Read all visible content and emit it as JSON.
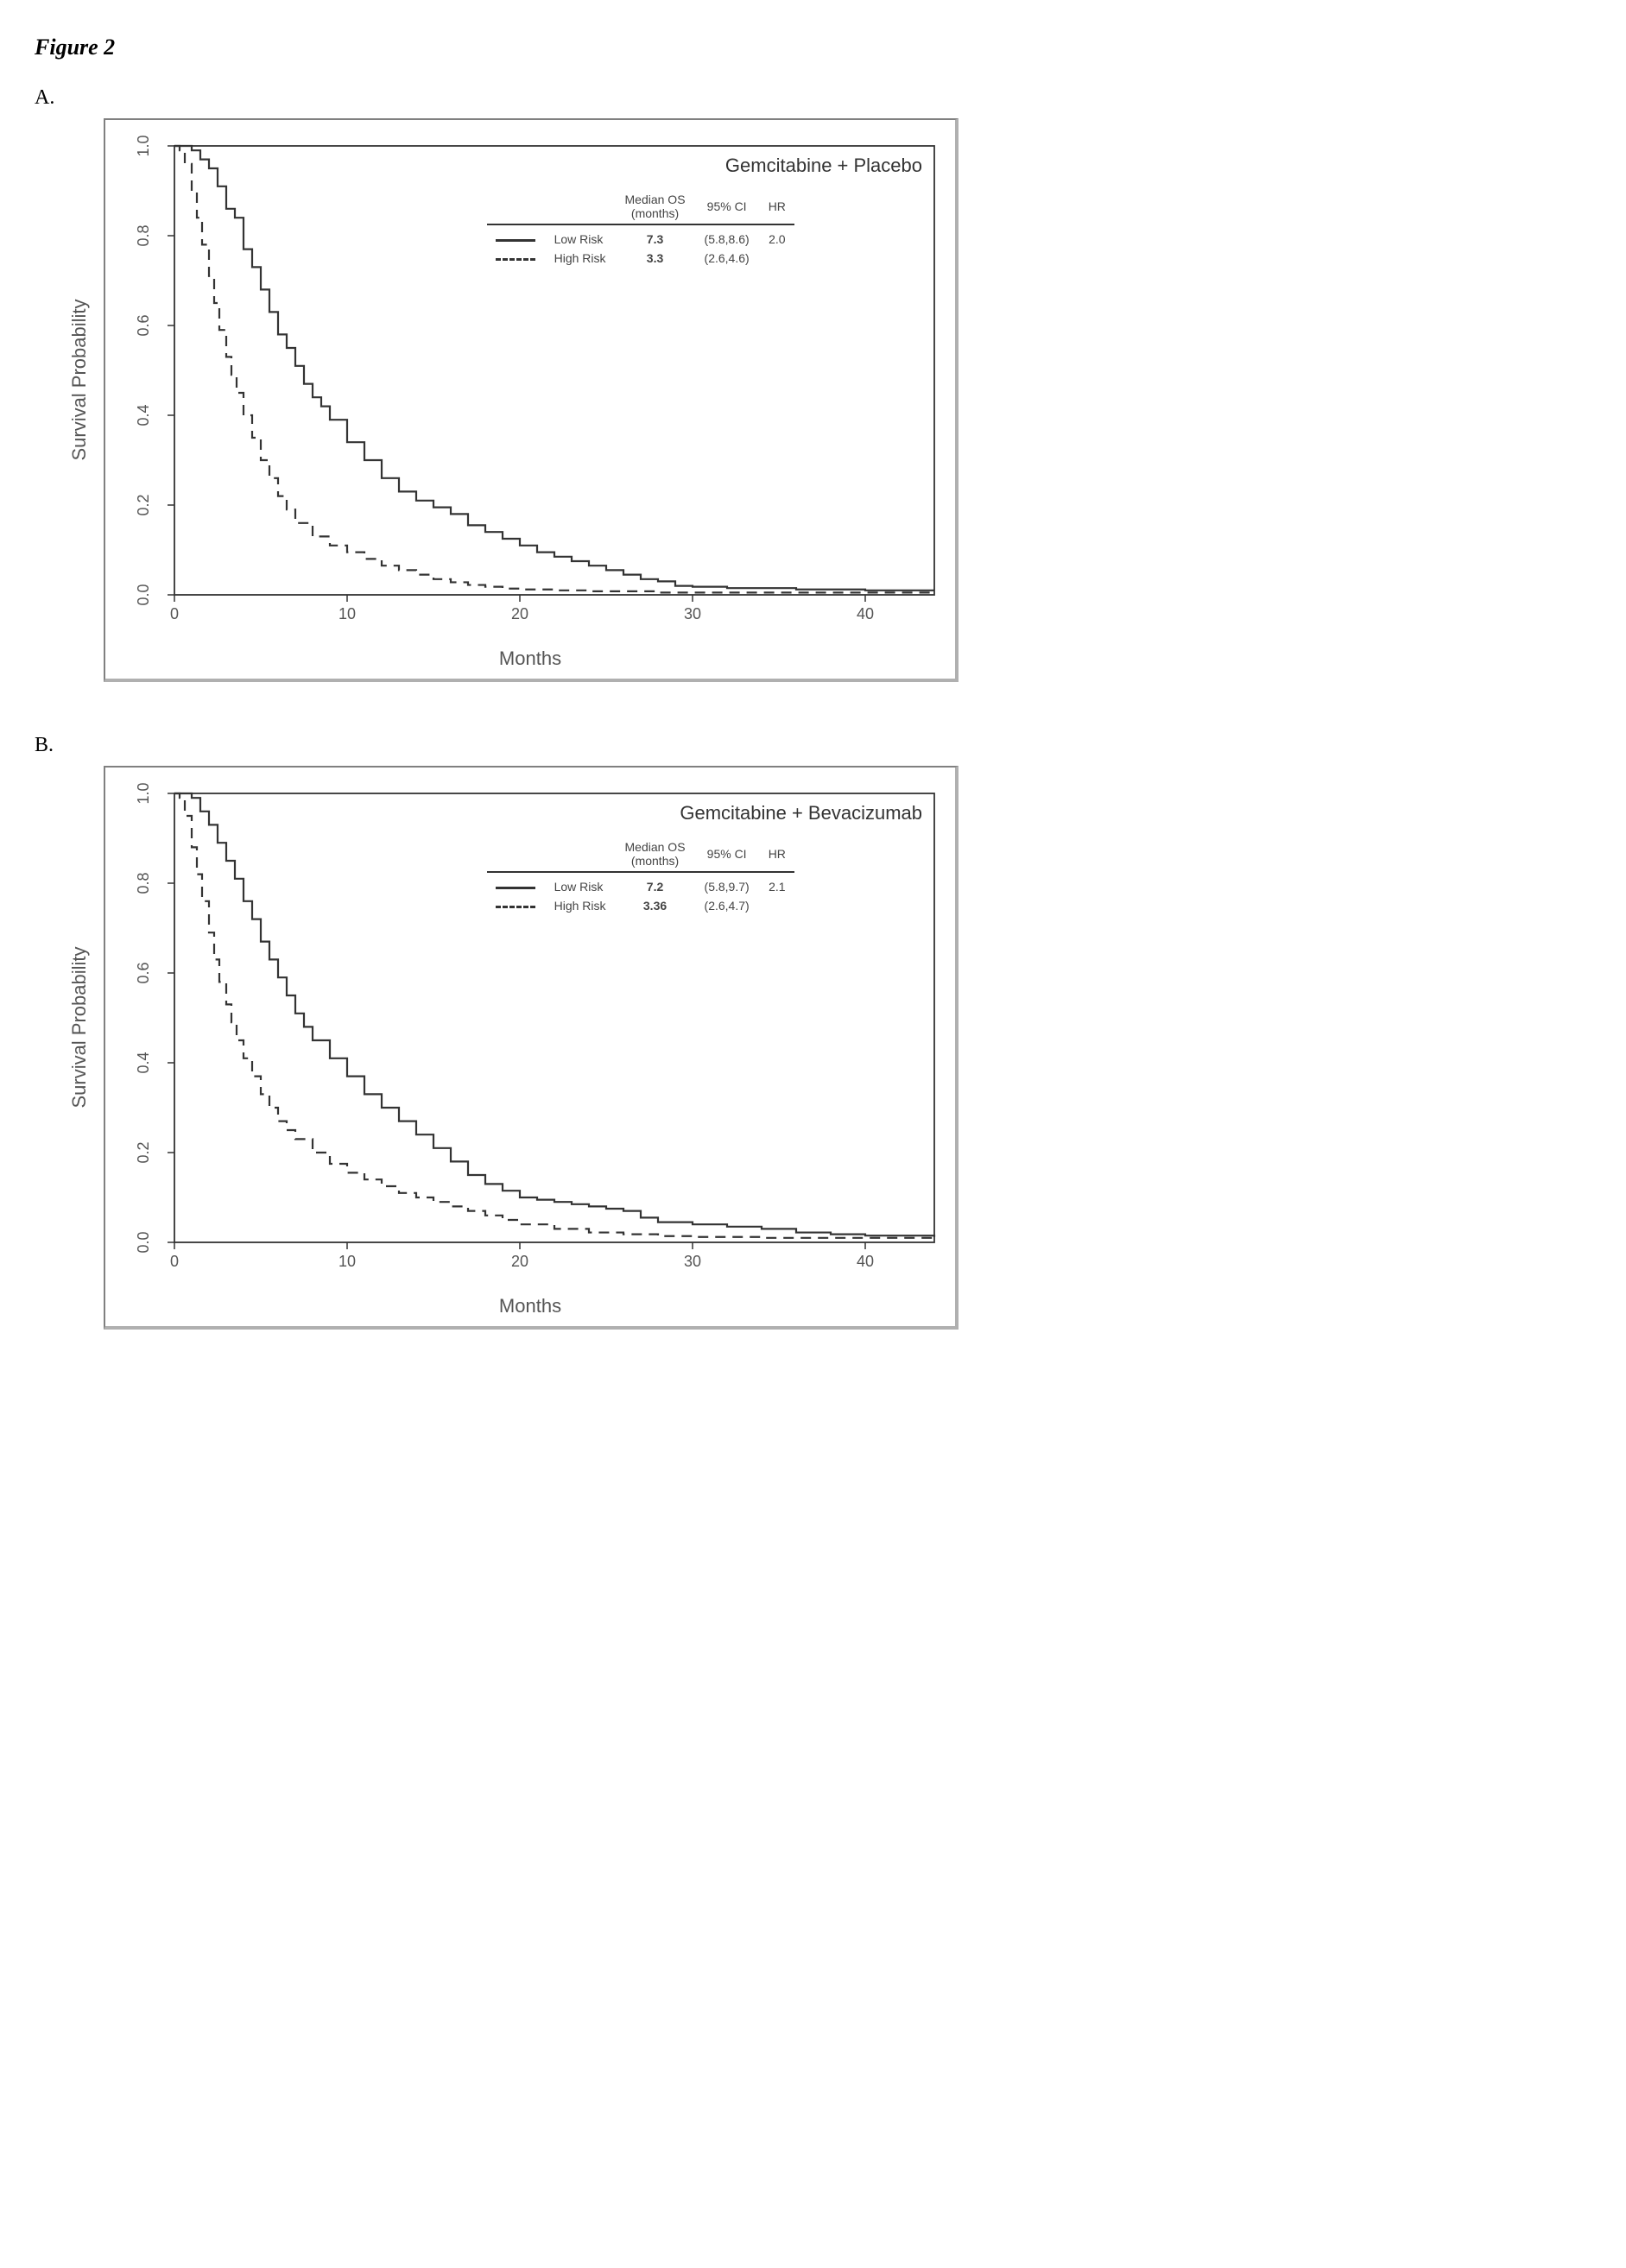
{
  "figure_label": "Figure 2",
  "panels": {
    "A": {
      "panel_label": "A.",
      "title": "Gemcitabine + Placebo",
      "xlabel": "Months",
      "ylabel": "Survival Probability",
      "xlim": [
        0,
        44
      ],
      "ylim": [
        0,
        1.0
      ],
      "xticks": [
        0,
        10,
        20,
        30,
        40
      ],
      "yticks": [
        0.0,
        0.2,
        0.4,
        0.6,
        0.8,
        1.0
      ],
      "ytick_labels": [
        "0.0",
        "0.2",
        "0.4",
        "0.6",
        "0.8",
        "1.0"
      ],
      "legend_headers": [
        "",
        "Median OS (months)",
        "95% CI",
        "HR"
      ],
      "series": [
        {
          "name": "Low Risk",
          "dash": "solid",
          "color": "#333333",
          "median_os": "7.3",
          "ci": "(5.8,8.6)",
          "hr": "2.0",
          "points": [
            [
              0,
              1.0
            ],
            [
              0.5,
              1.0
            ],
            [
              1.0,
              0.99
            ],
            [
              1.5,
              0.97
            ],
            [
              2.0,
              0.95
            ],
            [
              2.5,
              0.91
            ],
            [
              3.0,
              0.86
            ],
            [
              3.5,
              0.84
            ],
            [
              4.0,
              0.77
            ],
            [
              4.5,
              0.73
            ],
            [
              5.0,
              0.68
            ],
            [
              5.5,
              0.63
            ],
            [
              6.0,
              0.58
            ],
            [
              6.5,
              0.55
            ],
            [
              7.0,
              0.51
            ],
            [
              7.5,
              0.47
            ],
            [
              8.0,
              0.44
            ],
            [
              8.5,
              0.42
            ],
            [
              9.0,
              0.39
            ],
            [
              10.0,
              0.34
            ],
            [
              11.0,
              0.3
            ],
            [
              12.0,
              0.26
            ],
            [
              13.0,
              0.23
            ],
            [
              14.0,
              0.21
            ],
            [
              15.0,
              0.195
            ],
            [
              16.0,
              0.18
            ],
            [
              17.0,
              0.155
            ],
            [
              18.0,
              0.14
            ],
            [
              19.0,
              0.125
            ],
            [
              20.0,
              0.11
            ],
            [
              21.0,
              0.095
            ],
            [
              22.0,
              0.085
            ],
            [
              23.0,
              0.075
            ],
            [
              24.0,
              0.065
            ],
            [
              25.0,
              0.055
            ],
            [
              26.0,
              0.045
            ],
            [
              27.0,
              0.035
            ],
            [
              28.0,
              0.03
            ],
            [
              29.0,
              0.02
            ],
            [
              30.0,
              0.018
            ],
            [
              32.0,
              0.015
            ],
            [
              36.0,
              0.012
            ],
            [
              40.0,
              0.01
            ],
            [
              44.0,
              0.01
            ]
          ]
        },
        {
          "name": "High Risk",
          "dash": "dashed",
          "color": "#333333",
          "median_os": "3.3",
          "ci": "(2.6,4.6)",
          "hr": "",
          "points": [
            [
              0,
              1.0
            ],
            [
              0.3,
              0.99
            ],
            [
              0.6,
              0.96
            ],
            [
              1.0,
              0.9
            ],
            [
              1.3,
              0.84
            ],
            [
              1.6,
              0.78
            ],
            [
              2.0,
              0.71
            ],
            [
              2.3,
              0.65
            ],
            [
              2.6,
              0.59
            ],
            [
              3.0,
              0.53
            ],
            [
              3.3,
              0.49
            ],
            [
              3.6,
              0.45
            ],
            [
              4.0,
              0.4
            ],
            [
              4.5,
              0.35
            ],
            [
              5.0,
              0.3
            ],
            [
              5.5,
              0.26
            ],
            [
              6.0,
              0.22
            ],
            [
              6.5,
              0.19
            ],
            [
              7.0,
              0.16
            ],
            [
              8.0,
              0.13
            ],
            [
              9.0,
              0.11
            ],
            [
              10.0,
              0.095
            ],
            [
              11.0,
              0.08
            ],
            [
              12.0,
              0.065
            ],
            [
              13.0,
              0.055
            ],
            [
              14.0,
              0.045
            ],
            [
              15.0,
              0.035
            ],
            [
              16.0,
              0.028
            ],
            [
              17.0,
              0.022
            ],
            [
              18.0,
              0.018
            ],
            [
              19.0,
              0.014
            ],
            [
              20.0,
              0.012
            ],
            [
              22.0,
              0.01
            ],
            [
              24.0,
              0.008
            ],
            [
              28.0,
              0.005
            ],
            [
              44.0,
              0.003
            ]
          ]
        }
      ]
    },
    "B": {
      "panel_label": "B.",
      "title": "Gemcitabine + Bevacizumab",
      "xlabel": "Months",
      "ylabel": "Survival Probability",
      "xlim": [
        0,
        44
      ],
      "ylim": [
        0,
        1.0
      ],
      "xticks": [
        0,
        10,
        20,
        30,
        40
      ],
      "yticks": [
        0.0,
        0.2,
        0.4,
        0.6,
        0.8,
        1.0
      ],
      "ytick_labels": [
        "0.0",
        "0.2",
        "0.4",
        "0.6",
        "0.8",
        "1.0"
      ],
      "legend_headers": [
        "",
        "Median OS (months)",
        "95% CI",
        "HR"
      ],
      "series": [
        {
          "name": "Low Risk",
          "dash": "solid",
          "color": "#333333",
          "median_os": "7.2",
          "ci": "(5.8,9.7)",
          "hr": "2.1",
          "points": [
            [
              0,
              1.0
            ],
            [
              0.5,
              1.0
            ],
            [
              1.0,
              0.99
            ],
            [
              1.5,
              0.96
            ],
            [
              2.0,
              0.93
            ],
            [
              2.5,
              0.89
            ],
            [
              3.0,
              0.85
            ],
            [
              3.5,
              0.81
            ],
            [
              4.0,
              0.76
            ],
            [
              4.5,
              0.72
            ],
            [
              5.0,
              0.67
            ],
            [
              5.5,
              0.63
            ],
            [
              6.0,
              0.59
            ],
            [
              6.5,
              0.55
            ],
            [
              7.0,
              0.51
            ],
            [
              7.5,
              0.48
            ],
            [
              8.0,
              0.45
            ],
            [
              9.0,
              0.41
            ],
            [
              10.0,
              0.37
            ],
            [
              11.0,
              0.33
            ],
            [
              12.0,
              0.3
            ],
            [
              13.0,
              0.27
            ],
            [
              14.0,
              0.24
            ],
            [
              15.0,
              0.21
            ],
            [
              16.0,
              0.18
            ],
            [
              17.0,
              0.15
            ],
            [
              18.0,
              0.13
            ],
            [
              19.0,
              0.115
            ],
            [
              20.0,
              0.1
            ],
            [
              21.0,
              0.095
            ],
            [
              22.0,
              0.09
            ],
            [
              23.0,
              0.085
            ],
            [
              24.0,
              0.08
            ],
            [
              25.0,
              0.075
            ],
            [
              26.0,
              0.07
            ],
            [
              27.0,
              0.055
            ],
            [
              28.0,
              0.045
            ],
            [
              30.0,
              0.04
            ],
            [
              32.0,
              0.035
            ],
            [
              34.0,
              0.03
            ],
            [
              36.0,
              0.022
            ],
            [
              38.0,
              0.018
            ],
            [
              40.0,
              0.015
            ],
            [
              44.0,
              0.012
            ]
          ]
        },
        {
          "name": "High Risk",
          "dash": "dashed",
          "color": "#333333",
          "median_os": "3.36",
          "ci": "(2.6,4.7)",
          "hr": "",
          "points": [
            [
              0,
              1.0
            ],
            [
              0.3,
              0.99
            ],
            [
              0.6,
              0.95
            ],
            [
              1.0,
              0.88
            ],
            [
              1.3,
              0.82
            ],
            [
              1.6,
              0.76
            ],
            [
              2.0,
              0.69
            ],
            [
              2.3,
              0.63
            ],
            [
              2.6,
              0.58
            ],
            [
              3.0,
              0.53
            ],
            [
              3.3,
              0.49
            ],
            [
              3.6,
              0.45
            ],
            [
              4.0,
              0.41
            ],
            [
              4.5,
              0.37
            ],
            [
              5.0,
              0.33
            ],
            [
              5.5,
              0.3
            ],
            [
              6.0,
              0.27
            ],
            [
              6.5,
              0.25
            ],
            [
              7.0,
              0.23
            ],
            [
              8.0,
              0.2
            ],
            [
              9.0,
              0.175
            ],
            [
              10.0,
              0.155
            ],
            [
              11.0,
              0.14
            ],
            [
              12.0,
              0.125
            ],
            [
              13.0,
              0.11
            ],
            [
              14.0,
              0.1
            ],
            [
              15.0,
              0.09
            ],
            [
              16.0,
              0.08
            ],
            [
              17.0,
              0.07
            ],
            [
              18.0,
              0.06
            ],
            [
              19.0,
              0.05
            ],
            [
              20.0,
              0.04
            ],
            [
              22.0,
              0.03
            ],
            [
              24.0,
              0.022
            ],
            [
              26.0,
              0.018
            ],
            [
              28.0,
              0.014
            ],
            [
              30.0,
              0.012
            ],
            [
              34.0,
              0.01
            ],
            [
              44.0,
              0.008
            ]
          ]
        }
      ]
    }
  },
  "style": {
    "line_width": 2.2,
    "step_mode": "hv",
    "axis_color": "#333333",
    "tick_len": 8,
    "plot_inner_w": 880,
    "plot_inner_h": 520,
    "title_fontsize": 22,
    "legend_fontsize": 14
  }
}
